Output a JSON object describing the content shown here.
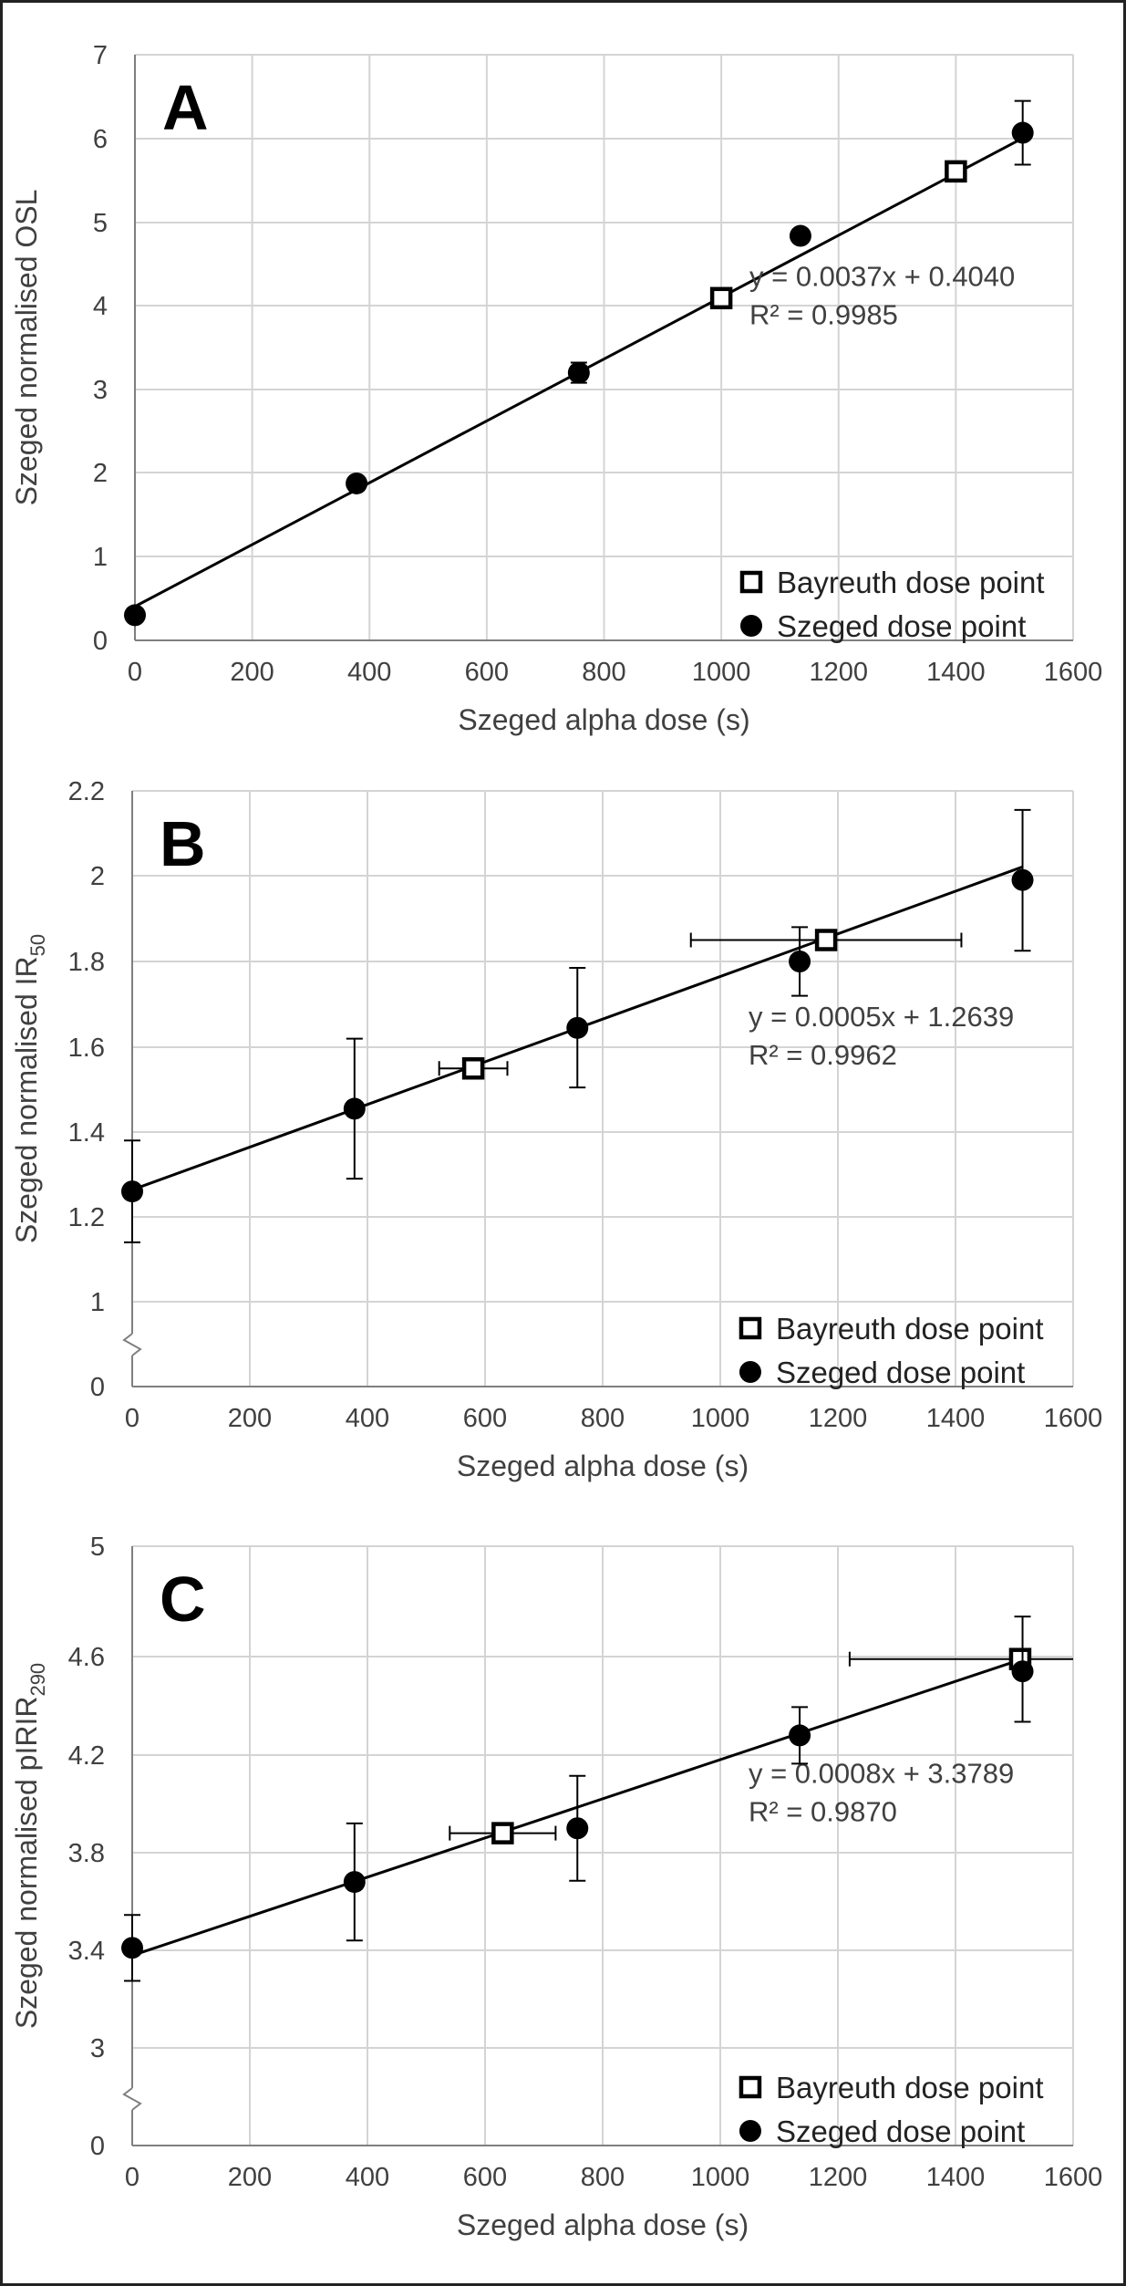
{
  "chart_data": [
    {
      "type": "scatter",
      "panel_label": "A",
      "xlabel": "Szeged alpha dose (s)",
      "ylabel": "Szeged normalised OSL",
      "ylabel_sub": "",
      "xlim": [
        0,
        1600
      ],
      "ylim": [
        0,
        7
      ],
      "x_ticks": [
        0,
        200,
        400,
        600,
        800,
        1000,
        1200,
        1400,
        1600
      ],
      "y_ticks": [
        0,
        1,
        2,
        3,
        4,
        5,
        6,
        7
      ],
      "y_tick_labels": [
        "0",
        "1",
        "2",
        "3",
        "4",
        "5",
        "6",
        "7"
      ],
      "axis_break": false,
      "grid": true,
      "legend_position": "bottom-right",
      "series": [
        {
          "name": "Bayreuth dose point",
          "marker": "open-square",
          "points": [
            {
              "x": 1000,
              "y": 4.09,
              "xerr": 15,
              "yerr": 0
            },
            {
              "x": 1400,
              "y": 5.61,
              "xerr": 15,
              "yerr": 0
            }
          ]
        },
        {
          "name": "Szeged dose point",
          "marker": "filled-circle",
          "points": [
            {
              "x": 0,
              "y": 0.3,
              "xerr": 0,
              "yerr": 0
            },
            {
              "x": 378,
              "y": 1.87,
              "xerr": 0,
              "yerr": 0
            },
            {
              "x": 757,
              "y": 3.2,
              "xerr": 0,
              "yerr": 0.12
            },
            {
              "x": 1135,
              "y": 4.84,
              "xerr": 0,
              "yerr": 0
            },
            {
              "x": 1514,
              "y": 6.07,
              "xerr": 0,
              "yerr": 0.38
            }
          ]
        }
      ],
      "trendline": {
        "slope": 0.0037,
        "intercept": 0.404,
        "x_range": [
          -10,
          1520
        ]
      },
      "equation": "y = 0.0037x + 0.4040",
      "r2": "R² = 0.9985"
    },
    {
      "type": "scatter",
      "panel_label": "B",
      "xlabel": "Szeged alpha dose (s)",
      "ylabel": "Szeged normalised IR",
      "ylabel_sub": "50",
      "xlim": [
        0,
        1600
      ],
      "ylim": [
        0,
        2.2
      ],
      "x_ticks": [
        0,
        200,
        400,
        600,
        800,
        1000,
        1200,
        1400,
        1600
      ],
      "y_ticks": [
        0,
        1,
        1.2,
        1.4,
        1.6,
        1.8,
        2,
        2.2
      ],
      "y_tick_labels": [
        "0",
        "1",
        "1.2",
        "1.4",
        "1.6",
        "1.8",
        "2",
        "2.2"
      ],
      "axis_break": true,
      "grid": true,
      "legend_position": "bottom-right",
      "series": [
        {
          "name": "Bayreuth dose point",
          "marker": "open-square",
          "points": [
            {
              "x": 580,
              "y": 1.55,
              "xerr": 58,
              "yerr": 0
            },
            {
              "x": 1180,
              "y": 1.85,
              "xerr": 230,
              "yerr": 0
            }
          ]
        },
        {
          "name": "Szeged dose point",
          "marker": "filled-circle",
          "points": [
            {
              "x": 0,
              "y": 1.26,
              "xerr": 0,
              "yerr": 0.12
            },
            {
              "x": 378,
              "y": 1.455,
              "xerr": 0,
              "yerr": 0.165
            },
            {
              "x": 757,
              "y": 1.645,
              "xerr": 0,
              "yerr": 0.14
            },
            {
              "x": 1135,
              "y": 1.8,
              "xerr": 0,
              "yerr": 0.08
            },
            {
              "x": 1514,
              "y": 1.99,
              "xerr": 0,
              "yerr": 0.165
            }
          ]
        }
      ],
      "trendline": {
        "slope": 0.0005,
        "intercept": 1.2639,
        "x_range": [
          0,
          1514
        ]
      },
      "equation": "y = 0.0005x + 1.2639",
      "r2": "R² = 0.9962"
    },
    {
      "type": "scatter",
      "panel_label": "C",
      "xlabel": "Szeged alpha dose (s)",
      "ylabel": "Szeged normalised pIRIR",
      "ylabel_sub": "290",
      "xlim": [
        0,
        1600
      ],
      "ylim": [
        0,
        5
      ],
      "x_ticks": [
        0,
        200,
        400,
        600,
        800,
        1000,
        1200,
        1400,
        1600
      ],
      "y_ticks": [
        0,
        3,
        3.4,
        3.8,
        4.2,
        4.6,
        5
      ],
      "y_tick_labels": [
        "0",
        "3",
        "3.4",
        "3.8",
        "4.2",
        "4.6",
        "5"
      ],
      "axis_break": true,
      "grid": true,
      "legend_position": "bottom-right",
      "series": [
        {
          "name": "Bayreuth dose point",
          "marker": "open-square",
          "points": [
            {
              "x": 630,
              "y": 3.88,
              "xerr": 90,
              "yerr": 0
            },
            {
              "x": 1510,
              "y": 4.59,
              "xerr": 290,
              "yerr": 0
            }
          ]
        },
        {
          "name": "Szeged dose point",
          "marker": "filled-circle",
          "points": [
            {
              "x": 0,
              "y": 3.41,
              "xerr": 0,
              "yerr": 0.135
            },
            {
              "x": 378,
              "y": 3.68,
              "xerr": 0,
              "yerr": 0.24
            },
            {
              "x": 757,
              "y": 3.9,
              "xerr": 0,
              "yerr": 0.215
            },
            {
              "x": 1135,
              "y": 4.28,
              "xerr": 0,
              "yerr": 0.115
            },
            {
              "x": 1514,
              "y": 4.54,
              "xerr": 0,
              "yerr": 0.205
            }
          ]
        }
      ],
      "trendline": {
        "slope": 0.0008,
        "intercept": 3.3789,
        "x_range": [
          0,
          1514
        ]
      },
      "equation": "y = 0.0008x + 3.3789",
      "r2": "R² = 0.9870"
    }
  ]
}
